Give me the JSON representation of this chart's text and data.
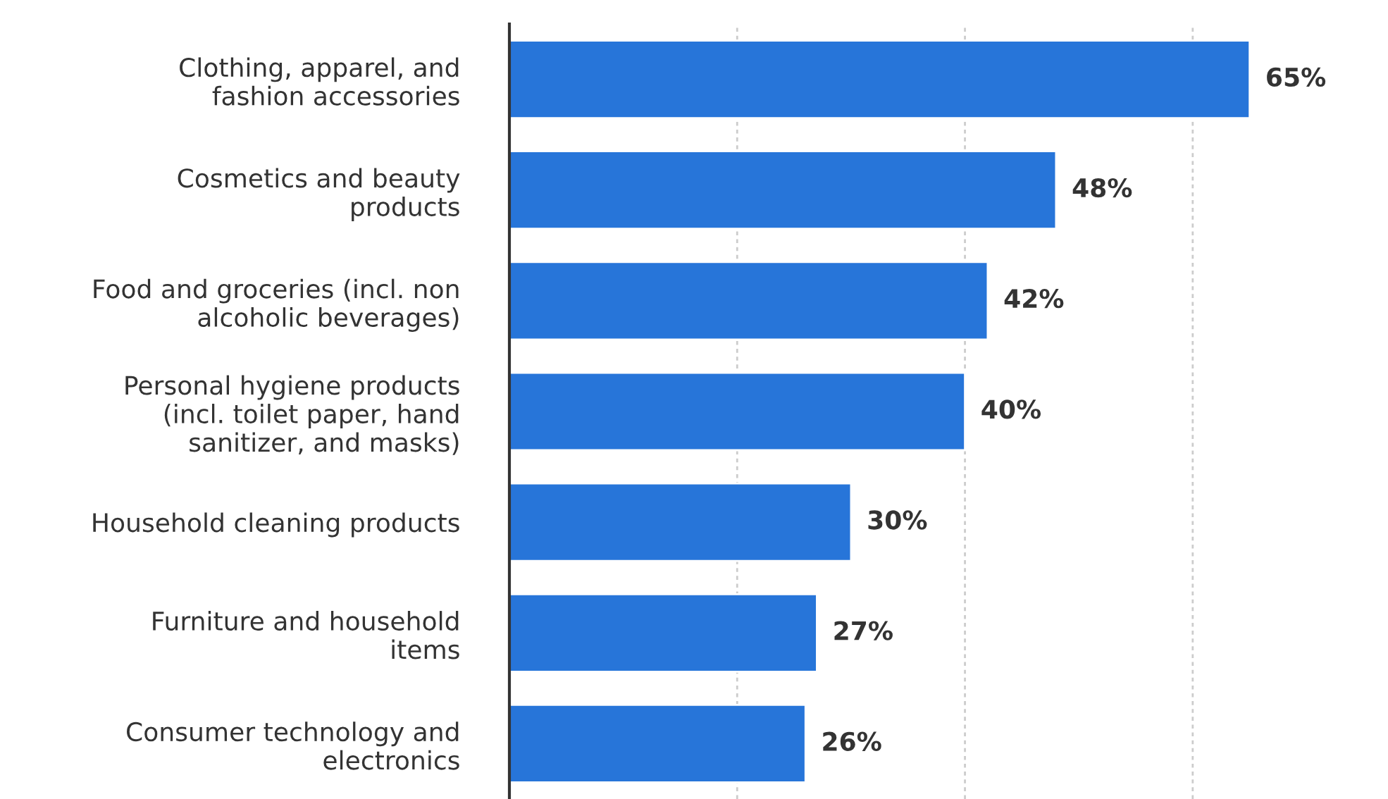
{
  "chart_data": {
    "type": "bar",
    "orientation": "horizontal",
    "categories": [
      "Clothing, apparel, and\nfashion accessories",
      "Cosmetics and beauty\nproducts",
      "Food and groceries (incl. non\nalcoholic beverages)",
      "Personal hygiene products\n(incl. toilet paper, hand\nsanitizer, and masks)",
      "Household cleaning products",
      "Furniture and household\nitems",
      "Consumer technology and\nelectronics"
    ],
    "values": [
      65,
      48,
      42,
      40,
      30,
      27,
      26
    ],
    "value_labels": [
      "65%",
      "48%",
      "42%",
      "40%",
      "30%",
      "27%",
      "26%"
    ],
    "color": "#2775d9",
    "xticks": [
      {
        "value": 20,
        "label": null
      },
      {
        "value": 40,
        "label": null
      },
      {
        "value": 60,
        "label": null
      }
    ],
    "grid": "x",
    "tick_labels": "y",
    "legend": false
  }
}
